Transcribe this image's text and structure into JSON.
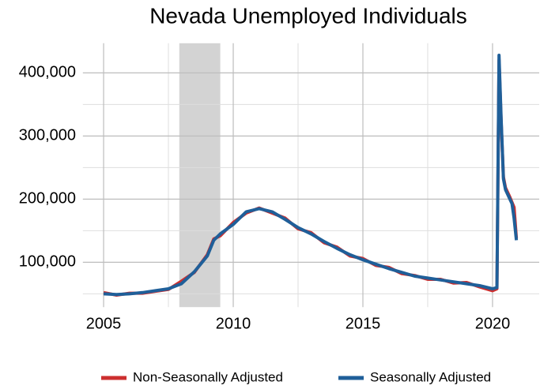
{
  "chart_data": {
    "type": "line",
    "title": "Nevada Unemployed Individuals",
    "x": [
      2005,
      2005.5,
      2006,
      2006.5,
      2007,
      2007.5,
      2008,
      2008.5,
      2009,
      2009.25,
      2009.5,
      2010,
      2010.5,
      2011,
      2011.5,
      2012,
      2012.5,
      2013,
      2013.5,
      2014,
      2014.5,
      2015,
      2015.5,
      2016,
      2016.5,
      2017,
      2017.5,
      2018,
      2018.5,
      2019,
      2019.5,
      2020,
      2020.17,
      2020.25,
      2020.33,
      2020.42,
      2020.5,
      2020.67,
      2020.75,
      2020.83,
      2020.92
    ],
    "series": [
      {
        "name": "Non-Seasonally Adjusted",
        "color": "#cc2f2f",
        "values": [
          52000,
          48000,
          51000,
          51000,
          54000,
          57000,
          70000,
          84000,
          112000,
          137000,
          142000,
          163000,
          178000,
          186000,
          178000,
          170000,
          153000,
          147000,
          131000,
          124000,
          110000,
          106000,
          95000,
          92000,
          82000,
          79000,
          73000,
          73000,
          67000,
          68000,
          61000,
          55000,
          58000,
          420000,
          325000,
          235000,
          218000,
          203000,
          195000,
          187000,
          138000
        ]
      },
      {
        "name": "Seasonally Adjusted",
        "color": "#1f5f99",
        "values": [
          50000,
          49000,
          50000,
          52000,
          55000,
          58000,
          66000,
          85000,
          110000,
          135000,
          145000,
          160000,
          180000,
          185000,
          180000,
          168000,
          155000,
          145000,
          133000,
          122000,
          112000,
          104000,
          97000,
          90000,
          84000,
          78000,
          75000,
          72000,
          69000,
          66000,
          63000,
          58000,
          60000,
          428000,
          330000,
          232000,
          215000,
          200000,
          193000,
          170000,
          135000
        ]
      }
    ],
    "xlim": [
      2004.2,
      2021.8
    ],
    "xticks": [
      2005,
      2010,
      2015,
      2020
    ],
    "x_minor_ticks": [
      2007.5,
      2012.5,
      2017.5
    ],
    "ylim": [
      29000,
      447000
    ],
    "yticks": [
      {
        "value": 100000,
        "label": "100,000"
      },
      {
        "value": 200000,
        "label": "200,000"
      },
      {
        "value": 300000,
        "label": "300,000"
      },
      {
        "value": 400000,
        "label": "400,000"
      }
    ],
    "y_minor_ticks": [
      50000,
      150000,
      250000,
      350000
    ],
    "shaded_regions": [
      {
        "start": 2007.92,
        "end": 2009.5,
        "color": "#d3d3d3"
      }
    ],
    "grid": true,
    "legend": "bottom"
  }
}
